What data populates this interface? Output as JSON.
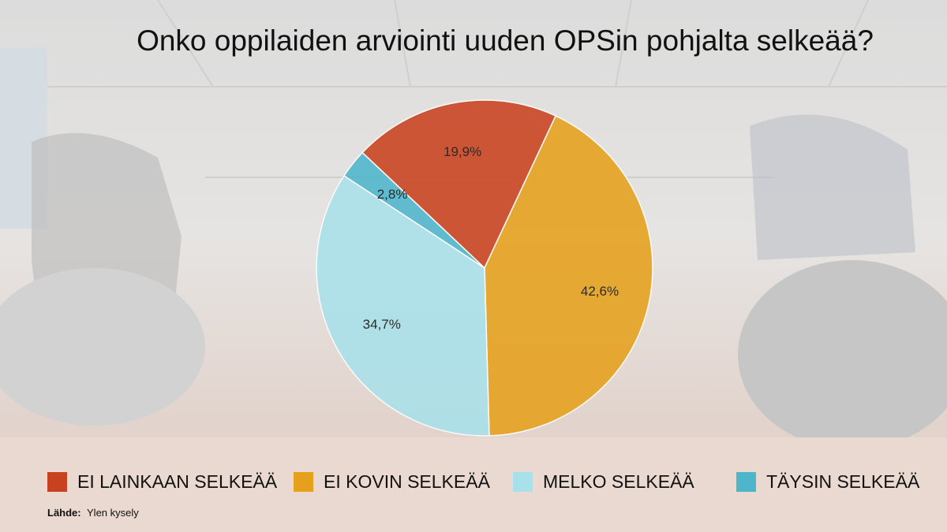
{
  "chart_data": {
    "type": "pie",
    "title": "Onko oppilaiden arviointi uuden OPSin pohjalta selkeää?",
    "categories": [
      "EI LAINKAAN SELKEÄÄ",
      "EI KOVIN SELKEÄÄ",
      "MELKO SELKEÄÄ",
      "TÄYSIN SELKEÄÄ"
    ],
    "values": [
      19.9,
      42.6,
      34.7,
      2.8
    ],
    "value_labels": [
      "19,9%",
      "42,6%",
      "34,7%",
      "2,8%"
    ],
    "colors": [
      "#c9421f",
      "#e6a11c",
      "#a9e1ea",
      "#4db6cb"
    ],
    "source_label": "Lähde:",
    "source": "Ylen kysely"
  }
}
